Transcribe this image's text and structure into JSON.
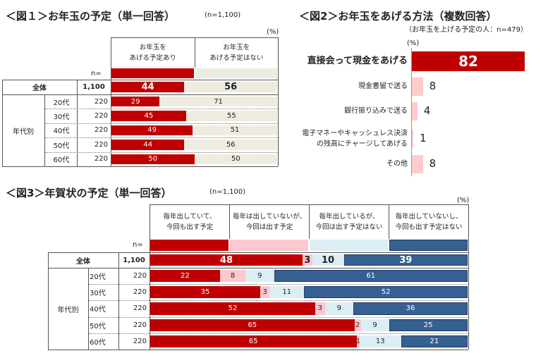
{
  "colors": {
    "red": "#c00000",
    "beige": "#eeece1",
    "pink": "#ffc7ce",
    "lightblue": "#dbeef4",
    "navy": "#376092",
    "pinkbar": "#ffcccc"
  },
  "chart_data": [
    {
      "type": "bar",
      "stacked": true,
      "orientation": "horizontal",
      "title": "＜図１＞お年玉の予定（単一回答）",
      "subtitle": "(n=1,100)",
      "unit": "(%)",
      "n_label": "n=",
      "series": [
        {
          "name": "お年玉を\nあげる予定あり",
          "color": "#c00000"
        },
        {
          "name": "お年玉を\nあげる予定はない",
          "color": "#eeece1"
        }
      ],
      "group_label": "年代別",
      "rows": [
        {
          "label": "全体",
          "n": "1,100",
          "values": [
            44,
            56
          ]
        },
        {
          "label": "20代",
          "n": "220",
          "values": [
            29,
            71
          ]
        },
        {
          "label": "30代",
          "n": "220",
          "values": [
            45,
            55
          ]
        },
        {
          "label": "40代",
          "n": "220",
          "values": [
            49,
            51
          ]
        },
        {
          "label": "50代",
          "n": "220",
          "values": [
            44,
            56
          ]
        },
        {
          "label": "60代",
          "n": "220",
          "values": [
            50,
            50
          ]
        }
      ]
    },
    {
      "type": "bar",
      "orientation": "horizontal",
      "title": "＜図2＞お年玉をあげる方法（複数回答）",
      "subtitle": "（お年玉を上げる予定の人：n=479）",
      "unit": "(%)",
      "categories": [
        "直接会って現金をあげる",
        "現金書留で送る",
        "銀行振り込みで送る",
        "電子マネーやキャッシュレス決済\nの残高にチャージしてあげる",
        "その他"
      ],
      "values": [
        82,
        8,
        4,
        1,
        8
      ]
    },
    {
      "type": "bar",
      "stacked": true,
      "orientation": "horizontal",
      "title": "＜図3＞年賀状の予定（単一回答）",
      "subtitle": "(n=1,100)",
      "unit": "(%)",
      "n_label": "n=",
      "series": [
        {
          "name": "毎年出していて、\n今回も出す予定",
          "color": "#c00000"
        },
        {
          "name": "毎年は出していないが、\n今回は出す予定",
          "color": "#ffc7ce"
        },
        {
          "name": "毎年出しているが、\n今回は出す予定はない",
          "color": "#dbeef4"
        },
        {
          "name": "毎年出していないし、\n今回も出す予定はない",
          "color": "#376092"
        }
      ],
      "group_label": "年代別",
      "rows": [
        {
          "label": "全体",
          "n": "1,100",
          "values": [
            48,
            3,
            10,
            39
          ]
        },
        {
          "label": "20代",
          "n": "220",
          "values": [
            22,
            8,
            9,
            61
          ]
        },
        {
          "label": "30代",
          "n": "220",
          "values": [
            35,
            3,
            11,
            52
          ]
        },
        {
          "label": "40代",
          "n": "220",
          "values": [
            52,
            3,
            9,
            36
          ]
        },
        {
          "label": "50代",
          "n": "220",
          "values": [
            65,
            2,
            9,
            25
          ]
        },
        {
          "label": "60代",
          "n": "220",
          "values": [
            65,
            1,
            13,
            21
          ]
        }
      ]
    }
  ]
}
